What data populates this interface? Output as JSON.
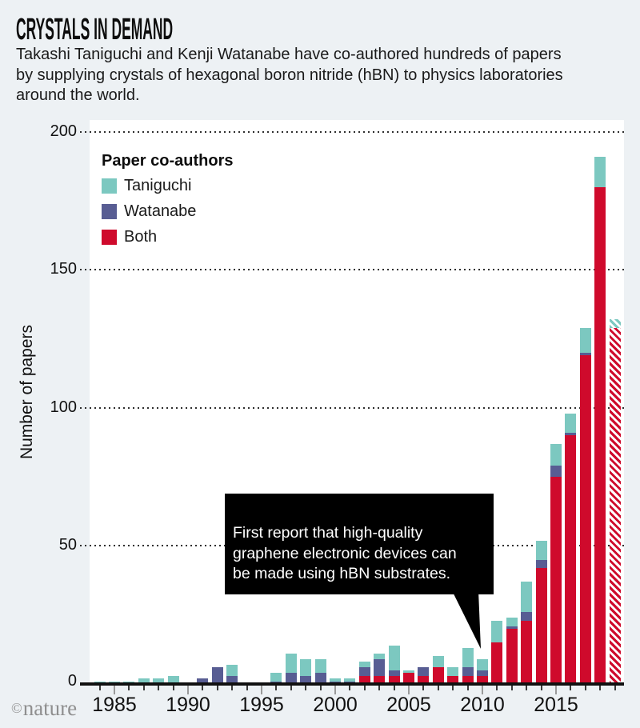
{
  "header": {
    "title": "CRYSTALS IN DEMAND",
    "subtitle": "Takashi Taniguchi and Kenji Watanabe have co-authored hundreds of papers\nby supplying crystals of hexagonal boron nitride (hBN) to physics laboratories\naround the world."
  },
  "legend": {
    "title": "Paper co-authors",
    "items": [
      {
        "label": "Taniguchi",
        "color": "#7cc8c0"
      },
      {
        "label": "Watanabe",
        "color": "#585d93"
      },
      {
        "label": "Both",
        "color": "#cf0a2c"
      }
    ]
  },
  "annotation": {
    "text": "First report that high-quality\ngraphene electronic devices can\nbe made using hBN substrates."
  },
  "footer": {
    "copyright_symbol": "©",
    "credit": "nature"
  },
  "chart_data": {
    "type": "bar",
    "stacked": true,
    "title": "CRYSTALS IN DEMAND",
    "ylabel": "Number of papers",
    "xlabel": "",
    "ylim": [
      0,
      200
    ],
    "yticks": [
      0,
      50,
      100,
      150,
      200
    ],
    "xtick_labels": [
      1985,
      1990,
      1995,
      2000,
      2005,
      2010,
      2015
    ],
    "grid": "horizontal-dotted",
    "legend_position": "top-left-inside",
    "years": [
      1984,
      1985,
      1986,
      1987,
      1988,
      1989,
      1990,
      1991,
      1992,
      1993,
      1994,
      1995,
      1996,
      1997,
      1998,
      1999,
      2000,
      2001,
      2002,
      2003,
      2004,
      2005,
      2006,
      2007,
      2008,
      2009,
      2010,
      2011,
      2012,
      2013,
      2014,
      2015,
      2016,
      2017,
      2018,
      2019
    ],
    "series": [
      {
        "name": "Taniguchi",
        "color": "#7cc8c0",
        "values": [
          1,
          1,
          1,
          2,
          2,
          3,
          0,
          0,
          0,
          4,
          0,
          0,
          3,
          7,
          6,
          5,
          1,
          1,
          2,
          2,
          9,
          1,
          0,
          4,
          3,
          7,
          4,
          8,
          3,
          11,
          7,
          8,
          7,
          9,
          11,
          3
        ]
      },
      {
        "name": "Watanabe",
        "color": "#585d93",
        "values": [
          0,
          0,
          0,
          0,
          0,
          0,
          0,
          2,
          6,
          3,
          0,
          0,
          1,
          4,
          3,
          4,
          1,
          1,
          3,
          6,
          2,
          0,
          3,
          0,
          0,
          3,
          2,
          0,
          1,
          3,
          3,
          4,
          1,
          1,
          0,
          0
        ]
      },
      {
        "name": "Both",
        "color": "#cf0a2c",
        "values": [
          0,
          0,
          0,
          0,
          0,
          0,
          0,
          0,
          0,
          0,
          0,
          0,
          0,
          0,
          0,
          0,
          0,
          0,
          3,
          3,
          3,
          4,
          3,
          6,
          3,
          3,
          3,
          15,
          20,
          23,
          42,
          75,
          90,
          119,
          180,
          129
        ]
      }
    ],
    "stack_order_bottom_to_top": [
      "Both",
      "Watanabe",
      "Taniguchi"
    ],
    "hatched_years": [
      2019
    ]
  }
}
